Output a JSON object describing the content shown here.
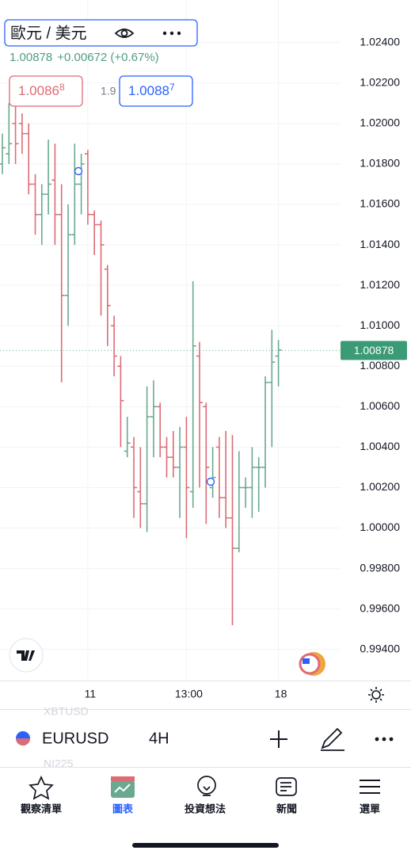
{
  "header": {
    "symbol": "歐元 / 美元",
    "last": "1.00878",
    "change": "+0.00672 (+0.67%)"
  },
  "quote": {
    "bid": "1.0086",
    "bid_small": "8",
    "spread": "1.9",
    "ask": "1.0088",
    "ask_small": "7"
  },
  "chart_data": {
    "type": "ohlc",
    "up_color": "#6aa98f",
    "down_color": "#dd6b74",
    "grid": true,
    "categories": [
      null,
      null,
      null,
      null,
      null,
      null,
      null,
      null,
      null,
      null,
      null,
      null,
      null,
      "11",
      null,
      null,
      null,
      null,
      null,
      null,
      null,
      null,
      null,
      null,
      null,
      null,
      null,
      null,
      "13:00",
      null,
      null,
      null,
      null,
      null,
      null,
      null,
      null,
      null,
      null,
      null,
      null,
      null,
      "18"
    ],
    "open": [
      1.018,
      1.0185,
      1.02,
      1.02,
      1.0195,
      1.017,
      1.0155,
      1.0165,
      1.0172,
      1.0155,
      1.0115,
      1.0145,
      1.017,
      1.0185,
      1.0155,
      1.015,
      1.0128,
      1.01,
      1.008,
      1.0038,
      1.004,
      1.0018,
      1.0012,
      1.0055,
      1.006,
      1.004,
      1.0035,
      1.003,
      1.004,
      1.0018,
      1.0085,
      1.006,
      1.002,
      1.004,
      1.0015,
      1.0005,
      0.999,
      1.002,
      1.002,
      1.003,
      1.003,
      1.0072,
      1.0085
    ],
    "high": [
      1.0195,
      1.021,
      1.021,
      1.0205,
      1.02,
      1.0175,
      1.017,
      1.0192,
      1.019,
      1.017,
      1.016,
      1.019,
      1.0185,
      1.0187,
      1.0157,
      1.0152,
      1.013,
      1.0105,
      1.0085,
      1.0055,
      1.0045,
      1.004,
      1.007,
      1.0073,
      1.0062,
      1.0045,
      1.0048,
      1.005,
      1.0055,
      1.0122,
      1.0092,
      1.0062,
      1.004,
      1.0045,
      1.0048,
      1.0046,
      1.0038,
      1.0025,
      1.004,
      1.0035,
      1.0075,
      1.0098,
      1.0093
    ],
    "low": [
      1.0175,
      1.018,
      1.018,
      1.0185,
      1.0165,
      1.0145,
      1.014,
      1.0155,
      1.014,
      1.0072,
      1.01,
      1.014,
      1.0155,
      1.015,
      1.0135,
      1.0105,
      1.009,
      1.0075,
      1.004,
      1.0035,
      1.0005,
      1.0,
      0.9998,
      1.0035,
      1.0035,
      1.0025,
      1.0025,
      1.0005,
      0.9995,
      1.001,
      1.002,
      1.0002,
      1.0015,
      1.0005,
      1.0,
      0.9952,
      0.9988,
      1.001,
      1.0005,
      1.0008,
      1.002,
      1.004,
      1.007
    ],
    "close": [
      1.0188,
      1.019,
      1.019,
      1.0195,
      1.017,
      1.0155,
      1.0165,
      1.017,
      1.0155,
      1.0115,
      1.0145,
      1.017,
      1.018,
      1.0155,
      1.015,
      1.014,
      1.011,
      1.0085,
      1.0063,
      1.0042,
      1.002,
      1.0012,
      1.0055,
      1.006,
      1.004,
      1.0035,
      1.003,
      1.004,
      1.002,
      1.009,
      1.0062,
      1.003,
      1.0025,
      1.0015,
      1.0005,
      0.999,
      1.002,
      1.002,
      1.003,
      1.003,
      1.0072,
      1.0082,
      1.0088
    ],
    "price_line": 1.00878,
    "ylim": [
      0.9925,
      1.0254
    ],
    "yticks": [
      {
        "value": 1.024,
        "label": "1.02400"
      },
      {
        "value": 1.022,
        "label": "1.02200"
      },
      {
        "value": 1.02,
        "label": "1.02000"
      },
      {
        "value": 1.018,
        "label": "1.01800"
      },
      {
        "value": 1.016,
        "label": "1.01600"
      },
      {
        "value": 1.014,
        "label": "1.01400"
      },
      {
        "value": 1.012,
        "label": "1.01200"
      },
      {
        "value": 1.01,
        "label": "1.01000"
      },
      {
        "value": 1.008,
        "label": "1.00800"
      },
      {
        "value": 1.006,
        "label": "1.00600"
      },
      {
        "value": 1.004,
        "label": "1.00400"
      },
      {
        "value": 1.002,
        "label": "1.00200"
      },
      {
        "value": 1.0,
        "label": "1.00000"
      },
      {
        "value": 0.998,
        "label": "0.99800"
      },
      {
        "value": 0.996,
        "label": "0.99600"
      },
      {
        "value": 0.994,
        "label": "0.99400"
      }
    ]
  },
  "toolbar": {
    "ghost_top": "XBTUSD",
    "symbol": "EURUSD",
    "interval": "4H",
    "ghost_bottom": "NI225"
  },
  "nav": [
    "觀察清單",
    "圖表",
    "投資想法",
    "新聞",
    "選單"
  ]
}
